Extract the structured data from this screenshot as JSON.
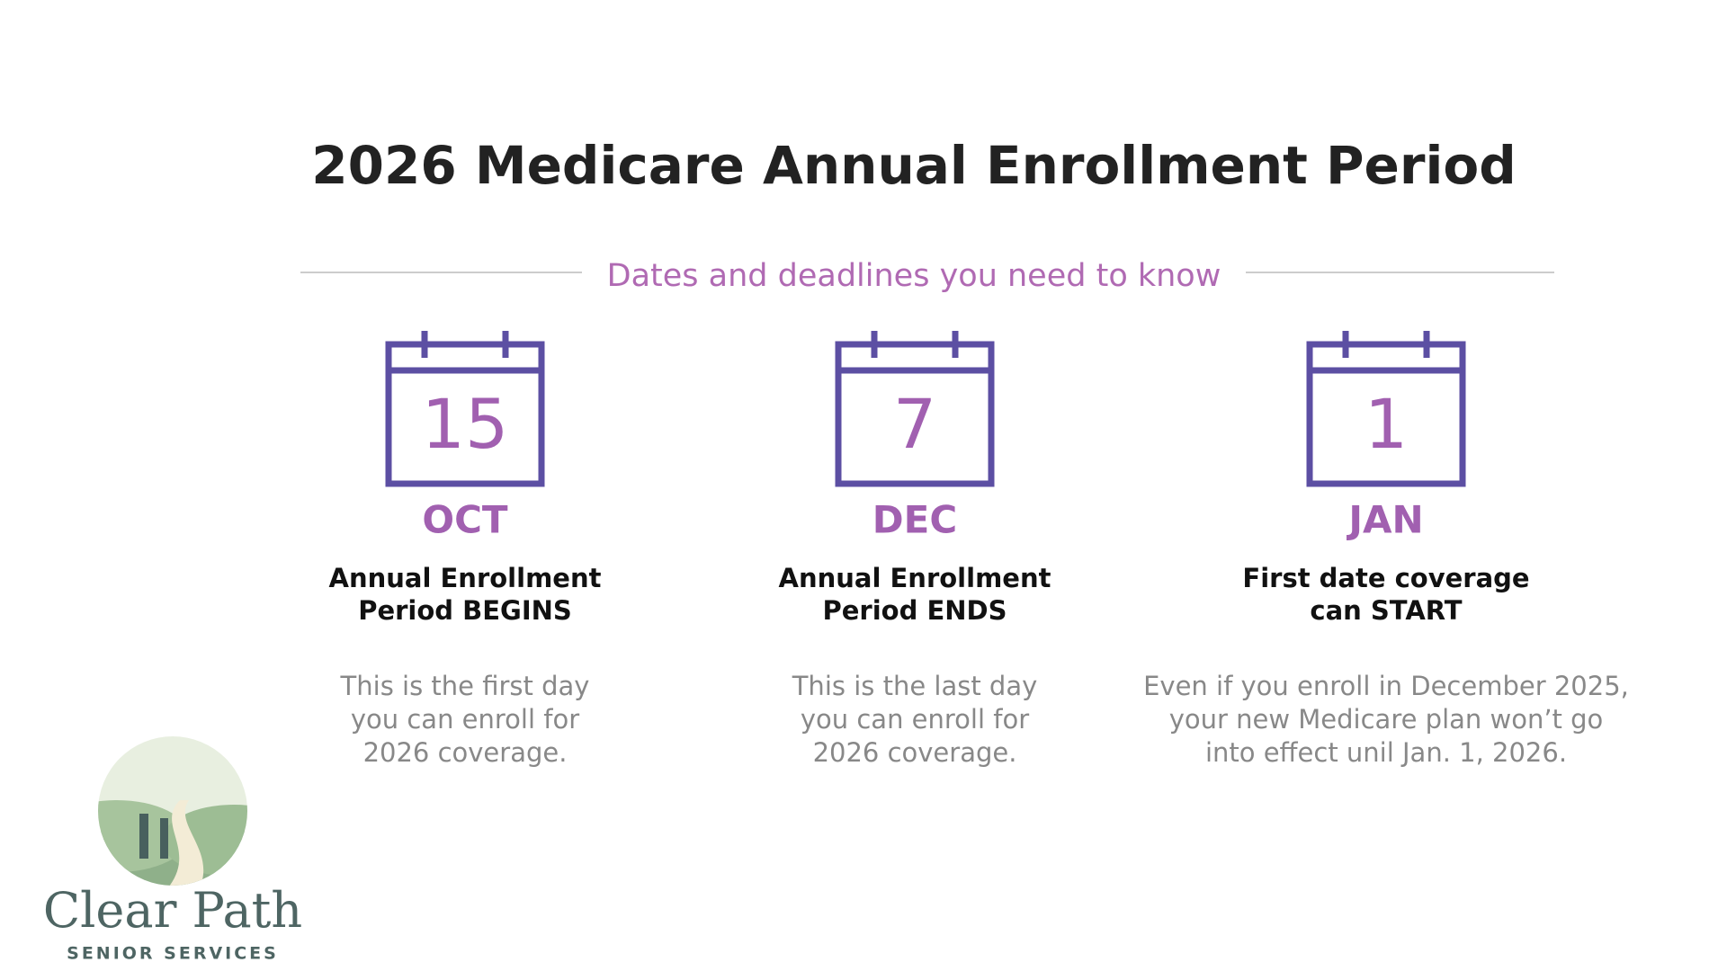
{
  "title": "2026 Medicare Annual Enrollment Period",
  "subtitle": "Dates and deadlines you need to know",
  "dates": [
    {
      "day": 15,
      "month": "OCT",
      "heading": [
        "Annual Enrollment",
        "Period BEGINS"
      ],
      "description": [
        "This is the first day",
        "you can enroll for",
        "2026 coverage."
      ]
    },
    {
      "day": 7,
      "month": "DEC",
      "heading": [
        "Annual Enrollment",
        "Period ENDS"
      ],
      "description": [
        "This is the last day",
        "you can enroll for",
        "2026 coverage."
      ]
    },
    {
      "day": 1,
      "month": "JAN",
      "heading": [
        "First date coverage",
        "can START"
      ],
      "description": [
        "Even if you enroll in December 2025,",
        "your new Medicare plan won’t go",
        "into effect unil Jan. 1, 2026."
      ]
    }
  ],
  "logo": {
    "name": "Clear Path",
    "tagline": "SENIOR SERVICES"
  }
}
